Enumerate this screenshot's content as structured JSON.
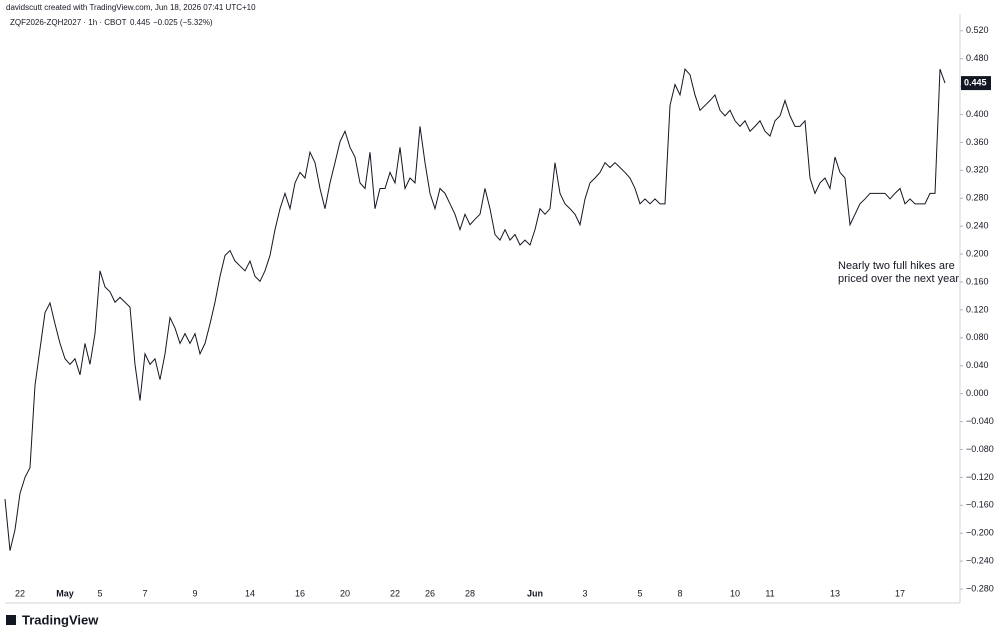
{
  "chart_data": {
    "type": "line",
    "credit": "davidscutt created with TradingView.com, Jun 18, 2026 07:41 UTC+10",
    "symbol": "ZQF2026-ZQH2027 · 1h · CBOT",
    "change": "−0.025 (−5.32%)",
    "annotation": [
      "Nearly two full hikes are",
      "priced over the next year"
    ],
    "logo": "TradingView",
    "grid": false,
    "categories": [
      null,
      null,
      null,
      "22",
      null,
      null,
      null,
      null,
      null,
      null,
      null,
      null,
      "May",
      null,
      null,
      null,
      null,
      null,
      null,
      "5",
      null,
      null,
      null,
      null,
      null,
      null,
      null,
      null,
      "7",
      null,
      null,
      null,
      null,
      null,
      null,
      null,
      null,
      null,
      "9",
      null,
      null,
      null,
      null,
      null,
      null,
      null,
      null,
      null,
      null,
      "14",
      null,
      null,
      null,
      null,
      null,
      null,
      null,
      null,
      null,
      "16",
      null,
      null,
      null,
      null,
      null,
      null,
      null,
      null,
      "20",
      null,
      null,
      null,
      null,
      null,
      null,
      null,
      null,
      null,
      "22",
      null,
      null,
      null,
      null,
      null,
      null,
      "26",
      null,
      null,
      null,
      null,
      null,
      null,
      null,
      "28",
      null,
      null,
      null,
      null,
      null,
      null,
      null,
      null,
      null,
      null,
      null,
      null,
      "Jun",
      null,
      null,
      null,
      null,
      null,
      null,
      null,
      null,
      null,
      "3",
      null,
      null,
      null,
      null,
      null,
      null,
      null,
      null,
      null,
      null,
      "5",
      null,
      null,
      null,
      null,
      null,
      null,
      null,
      "8",
      null,
      null,
      null,
      null,
      null,
      null,
      null,
      null,
      null,
      null,
      "10",
      null,
      null,
      null,
      null,
      null,
      null,
      "11",
      null,
      null,
      null,
      null,
      null,
      null,
      null,
      null,
      null,
      null,
      null,
      null,
      "13",
      null,
      null,
      null,
      null,
      null,
      null,
      null,
      null,
      null,
      null,
      null,
      null,
      "17",
      null,
      null,
      null,
      null,
      null,
      null,
      null,
      null,
      null
    ],
    "series": [
      {
        "name": "ZQF2026-ZQH2027",
        "color": "#131722",
        "values": [
          -0.151,
          -0.225,
          -0.195,
          -0.143,
          -0.12,
          -0.106,
          0.012,
          0.064,
          0.116,
          0.13,
          0.1,
          0.072,
          0.05,
          0.042,
          0.05,
          0.027,
          0.072,
          0.042,
          0.086,
          0.176,
          0.153,
          0.146,
          0.131,
          0.138,
          0.131,
          0.124,
          0.042,
          -0.01,
          0.057,
          0.042,
          0.05,
          0.02,
          0.057,
          0.109,
          0.094,
          0.072,
          0.086,
          0.072,
          0.086,
          0.057,
          0.072,
          0.1,
          0.131,
          0.168,
          0.198,
          0.205,
          0.19,
          0.183,
          0.176,
          0.19,
          0.168,
          0.161,
          0.176,
          0.198,
          0.235,
          0.265,
          0.287,
          0.265,
          0.302,
          0.317,
          0.309,
          0.346,
          0.331,
          0.294,
          0.265,
          0.302,
          0.331,
          0.361,
          0.376,
          0.353,
          0.339,
          0.302,
          0.294,
          0.346,
          0.265,
          0.294,
          0.294,
          0.317,
          0.302,
          0.353,
          0.294,
          0.309,
          0.302,
          0.383,
          0.331,
          0.287,
          0.265,
          0.294,
          0.287,
          0.272,
          0.257,
          0.235,
          0.257,
          0.242,
          0.25,
          0.257,
          0.294,
          0.265,
          0.228,
          0.22,
          0.235,
          0.22,
          0.228,
          0.213,
          0.22,
          0.213,
          0.235,
          0.265,
          0.257,
          0.265,
          0.331,
          0.287,
          0.272,
          0.265,
          0.257,
          0.242,
          0.279,
          0.302,
          0.309,
          0.317,
          0.331,
          0.324,
          0.331,
          0.324,
          0.317,
          0.309,
          0.294,
          0.272,
          0.279,
          0.272,
          0.279,
          0.272,
          0.272,
          0.413,
          0.443,
          0.428,
          0.465,
          0.457,
          0.428,
          0.406,
          0.413,
          0.42,
          0.428,
          0.406,
          0.398,
          0.406,
          0.391,
          0.383,
          0.391,
          0.376,
          0.383,
          0.391,
          0.376,
          0.369,
          0.391,
          0.398,
          0.42,
          0.398,
          0.383,
          0.383,
          0.391,
          0.309,
          0.287,
          0.302,
          0.309,
          0.294,
          0.339,
          0.317,
          0.309,
          0.242,
          0.257,
          0.272,
          0.279,
          0.287,
          0.287,
          0.287,
          0.287,
          0.279,
          0.287,
          0.294,
          0.272,
          0.279,
          0.272,
          0.272,
          0.272,
          0.287,
          0.287,
          0.465,
          0.445
        ]
      }
    ],
    "ylim": [
      -0.3,
      0.544
    ],
    "yticks": [
      {
        "value": 0.52,
        "label": "0.520"
      },
      {
        "value": 0.48,
        "label": "0.480"
      },
      {
        "value": 0.44,
        "label": "0.440"
      },
      {
        "value": 0.4,
        "label": "0.400"
      },
      {
        "value": 0.36,
        "label": "0.360"
      },
      {
        "value": 0.32,
        "label": "0.320"
      },
      {
        "value": 0.28,
        "label": "0.280"
      },
      {
        "value": 0.24,
        "label": "0.240"
      },
      {
        "value": 0.2,
        "label": "0.200"
      },
      {
        "value": 0.16,
        "label": "0.160"
      },
      {
        "value": 0.12,
        "label": "0.120"
      },
      {
        "value": 0.08,
        "label": "0.080"
      },
      {
        "value": 0.04,
        "label": "0.040"
      },
      {
        "value": 0,
        "label": "0.000"
      },
      {
        "value": -0.04,
        "label": "−0.040"
      },
      {
        "value": -0.08,
        "label": "−0.080"
      },
      {
        "value": -0.12,
        "label": "−0.120"
      },
      {
        "value": -0.16,
        "label": "−0.160"
      },
      {
        "value": -0.2,
        "label": "−0.200"
      },
      {
        "value": -0.24,
        "label": "−0.240"
      },
      {
        "value": -0.28,
        "label": "−0.280"
      }
    ]
  }
}
